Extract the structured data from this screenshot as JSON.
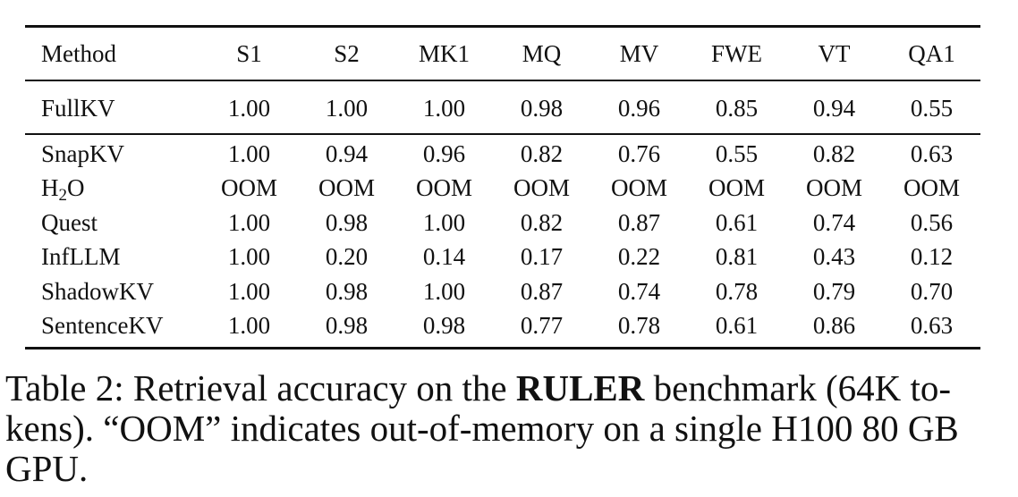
{
  "table": {
    "headers": [
      "Method",
      "S1",
      "S2",
      "MK1",
      "MQ",
      "MV",
      "FWE",
      "VT",
      "QA1"
    ],
    "baseline_rows": [
      {
        "method": "FullKV",
        "values": [
          "1.00",
          "1.00",
          "1.00",
          "0.98",
          "0.96",
          "0.85",
          "0.94",
          "0.55"
        ]
      }
    ],
    "rows": [
      {
        "method": "SnapKV",
        "values": [
          "1.00",
          "0.94",
          "0.96",
          "0.82",
          "0.76",
          "0.55",
          "0.82",
          "0.63"
        ]
      },
      {
        "method_prefix": "H",
        "method_sub": "2",
        "method_suffix": "O",
        "values": [
          "OOM",
          "OOM",
          "OOM",
          "OOM",
          "OOM",
          "OOM",
          "OOM",
          "OOM"
        ]
      },
      {
        "method": "Quest",
        "values": [
          "1.00",
          "0.98",
          "1.00",
          "0.82",
          "0.87",
          "0.61",
          "0.74",
          "0.56"
        ]
      },
      {
        "method": "InfLLM",
        "values": [
          "1.00",
          "0.20",
          "0.14",
          "0.17",
          "0.22",
          "0.81",
          "0.43",
          "0.12"
        ]
      },
      {
        "method": "ShadowKV",
        "values": [
          "1.00",
          "0.98",
          "1.00",
          "0.87",
          "0.74",
          "0.78",
          "0.79",
          "0.70"
        ]
      },
      {
        "method": "SentenceKV",
        "values": [
          "1.00",
          "0.98",
          "0.98",
          "0.77",
          "0.78",
          "0.61",
          "0.86",
          "0.63"
        ]
      }
    ]
  },
  "caption": {
    "prefix": "Table 2: Retrieval accuracy on the ",
    "bold": "RULER",
    "suffix_line1": " benchmark (64K to-",
    "line2": "kens). “OOM” indicates out-of-memory on a single H100 80 GB",
    "line3": "GPU."
  }
}
